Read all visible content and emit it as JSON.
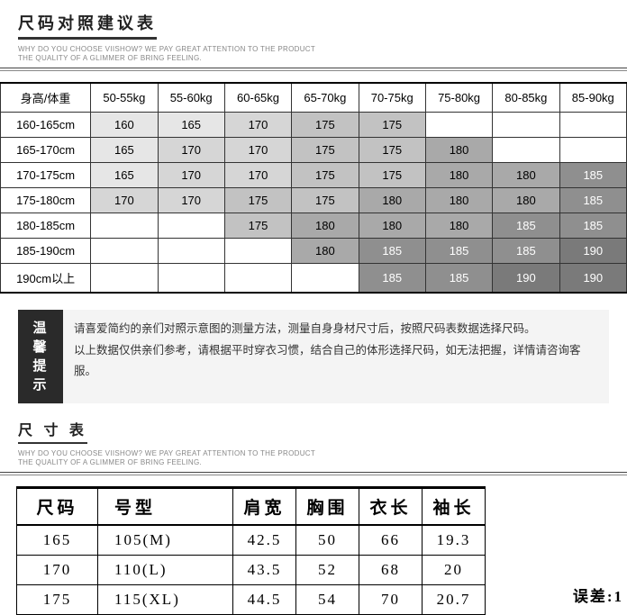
{
  "header1": {
    "title": "尺码对照建议表",
    "sub_line1": "WHY DO YOU CHOOSE VIISHOW? WE PAY GREAT ATTENTION TO THE PRODUCT",
    "sub_line2": "THE QUALITY OF A GLIMMER OF BRING FEELING."
  },
  "rec_table": {
    "corner": "身高/体重",
    "weight_cols": [
      "50-55kg",
      "55-60kg",
      "60-65kg",
      "65-70kg",
      "70-75kg",
      "75-80kg",
      "80-85kg",
      "85-90kg"
    ],
    "height_rows": [
      "160-165cm",
      "165-170cm",
      "170-175cm",
      "175-180cm",
      "180-185cm",
      "185-190cm",
      "190cm以上"
    ],
    "cells": [
      [
        "160",
        "165",
        "170",
        "175",
        "175",
        "",
        "",
        ""
      ],
      [
        "165",
        "170",
        "170",
        "175",
        "175",
        "180",
        "",
        ""
      ],
      [
        "165",
        "170",
        "170",
        "175",
        "175",
        "180",
        "180",
        "185"
      ],
      [
        "170",
        "170",
        "175",
        "175",
        "180",
        "180",
        "180",
        "185"
      ],
      [
        "",
        "",
        "175",
        "180",
        "180",
        "180",
        "185",
        "185"
      ],
      [
        "",
        "",
        "",
        "180",
        "185",
        "185",
        "185",
        "190"
      ],
      [
        "",
        "",
        "",
        "",
        "185",
        "185",
        "190",
        "190"
      ]
    ],
    "cell_bg_palette": [
      "#ffffff",
      "#e6e6e6",
      "#d6d6d6",
      "#c2c2c2",
      "#a9a9a9",
      "#8f8f8f",
      "#7a7a7a",
      "#666666"
    ],
    "value_to_shade": {
      "": 0,
      "160": 1,
      "165": 1,
      "170": 2,
      "175": 3,
      "180": 4,
      "185": 5,
      "190": 6
    }
  },
  "tip": {
    "label_l1": "温馨",
    "label_l2": "提示",
    "line1": "请喜爱简约的亲们对照示意图的测量方法，测量自身身材尺寸后，按照尺码表数据选择尺码。",
    "line2": "以上数据仅供亲们参考，请根据平时穿衣习惯，结合自己的体形选择尺码，如无法把握，详情请咨询客服。"
  },
  "header2": {
    "title": "尺 寸 表",
    "sub_line1": "WHY DO YOU CHOOSE VIISHOW? WE PAY GREAT ATTENTION TO THE PRODUCT",
    "sub_line2": "THE QUALITY OF A GLIMMER OF BRING FEELING."
  },
  "size_table": {
    "headers": [
      "尺码",
      "号型",
      "肩宽",
      "胸围",
      "衣长",
      "袖长"
    ],
    "rows": [
      [
        "165",
        "105(M)",
        "42.5",
        "50",
        "66",
        "19.3"
      ],
      [
        "170",
        "110(L)",
        "43.5",
        "52",
        "68",
        "20"
      ],
      [
        "175",
        "115(XL)",
        "44.5",
        "54",
        "70",
        "20.7"
      ]
    ]
  },
  "error_label": "误差:1"
}
